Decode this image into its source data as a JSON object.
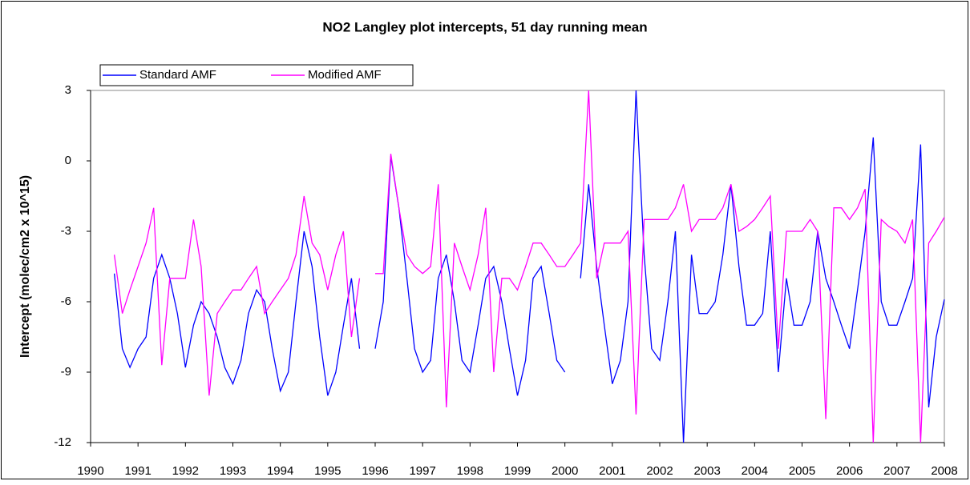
{
  "chart_data": {
    "type": "line",
    "title": "NO2 Langley plot intercepts, 51 day running mean",
    "y_label": "Intercept (molec/cm2 x 10^15)",
    "x": [
      1990.5,
      1990.67,
      1990.83,
      1991.0,
      1991.17,
      1991.33,
      1991.5,
      1991.67,
      1991.83,
      1992.0,
      1992.17,
      1992.33,
      1992.5,
      1992.67,
      1992.83,
      1993.0,
      1993.17,
      1993.33,
      1993.5,
      1993.67,
      1993.83,
      1994.0,
      1994.17,
      1994.33,
      1994.5,
      1994.67,
      1994.83,
      1995.0,
      1995.17,
      1995.33,
      1995.5,
      1995.67,
      1995.83,
      1996.0,
      1996.17,
      1996.33,
      1996.5,
      1996.67,
      1996.83,
      1997.0,
      1997.17,
      1997.33,
      1997.5,
      1997.67,
      1997.83,
      1998.0,
      1998.17,
      1998.33,
      1998.5,
      1998.67,
      1998.83,
      1999.0,
      1999.17,
      1999.33,
      1999.5,
      1999.67,
      1999.83,
      2000.0,
      2000.17,
      2000.33,
      2000.5,
      2000.67,
      2000.83,
      2001.0,
      2001.17,
      2001.33,
      2001.5,
      2001.67,
      2001.83,
      2002.0,
      2002.17,
      2002.33,
      2002.5,
      2002.67,
      2002.83,
      2003.0,
      2003.17,
      2003.33,
      2003.5,
      2003.67,
      2003.83,
      2004.0,
      2004.17,
      2004.33,
      2004.5,
      2004.67,
      2004.83,
      2005.0,
      2005.17,
      2005.33,
      2005.5,
      2005.67,
      2005.83,
      2006.0,
      2006.17,
      2006.33,
      2006.5,
      2006.67,
      2006.83,
      2007.0,
      2007.17,
      2007.33,
      2007.5,
      2007.67,
      2007.83,
      2008.0
    ],
    "series": [
      {
        "name": "Standard AMF",
        "color": "#0000ff",
        "values": [
          -4.8,
          -8.0,
          -8.8,
          -8.0,
          -7.5,
          -5.0,
          -4.0,
          -5.0,
          -6.5,
          -8.8,
          -7.0,
          -6.0,
          -6.5,
          -7.5,
          -8.8,
          -9.5,
          -8.5,
          -6.5,
          -5.5,
          -6.0,
          -8.0,
          -9.8,
          -9.0,
          -6.0,
          -3.0,
          -4.5,
          -7.5,
          -10.0,
          -9.0,
          -7.0,
          -5.0,
          -8.0,
          null,
          -8.0,
          -6.0,
          0.2,
          -2.0,
          -5.0,
          -8.0,
          -9.0,
          -8.5,
          -5.0,
          -4.0,
          -6.0,
          -8.5,
          -9.0,
          -7.0,
          -5.0,
          -4.5,
          -6.0,
          -8.0,
          -10.0,
          -8.5,
          -5.0,
          -4.5,
          -6.5,
          -8.5,
          -9.0,
          null,
          -5.0,
          -1.0,
          -4.5,
          -7.0,
          -9.5,
          -8.5,
          -6.0,
          3.0,
          -4.0,
          -8.0,
          -8.5,
          -6.0,
          -3.0,
          -12.0,
          -4.0,
          -6.5,
          -6.5,
          -6.0,
          -4.0,
          -1.0,
          -4.5,
          -7.0,
          -7.0,
          -6.5,
          -3.0,
          -9.0,
          -5.0,
          -7.0,
          -7.0,
          -6.0,
          -3.0,
          -5.0,
          -6.0,
          -7.0,
          -8.0,
          -5.5,
          -3.0,
          1.0,
          -6.0,
          -7.0,
          -7.0,
          -6.0,
          -5.0,
          0.7,
          -10.5,
          -7.5,
          -5.9
        ]
      },
      {
        "name": "Modified AMF",
        "color": "#ff00ff",
        "values": [
          -4.0,
          -6.5,
          -5.5,
          -4.5,
          -3.5,
          -2.0,
          -8.7,
          -5.0,
          -5.0,
          -5.0,
          -2.5,
          -4.5,
          -10.0,
          -6.5,
          -6.0,
          -5.5,
          -5.5,
          -5.0,
          -4.5,
          -6.5,
          -6.0,
          -5.5,
          -5.0,
          -4.0,
          -1.5,
          -3.5,
          -4.0,
          -5.5,
          -4.0,
          -3.0,
          -7.5,
          -5.0,
          null,
          -4.8,
          -4.8,
          0.3,
          -2.0,
          -4.0,
          -4.5,
          -4.8,
          -4.5,
          -1.0,
          -10.5,
          -3.5,
          -4.5,
          -5.5,
          -4.0,
          -2.0,
          -9.0,
          -5.0,
          -5.0,
          -5.5,
          -4.5,
          -3.5,
          -3.5,
          -4.0,
          -4.5,
          -4.5,
          -4.0,
          -3.5,
          3.0,
          -5.0,
          -3.5,
          -3.5,
          -3.5,
          -3.0,
          -10.8,
          -2.5,
          -2.5,
          -2.5,
          -2.5,
          -2.0,
          -1.0,
          -3.0,
          -2.5,
          -2.5,
          -2.5,
          -2.0,
          -1.0,
          -3.0,
          -2.8,
          -2.5,
          -2.0,
          -1.5,
          -8.0,
          -3.0,
          -3.0,
          -3.0,
          -2.5,
          -3.0,
          -11.0,
          -2.0,
          -2.0,
          -2.5,
          -2.0,
          -1.2,
          -12.0,
          -2.5,
          -2.8,
          -3.0,
          -3.5,
          -2.5,
          -12.0,
          -3.5,
          -3.0,
          -2.4
        ]
      }
    ],
    "xlim": [
      1990,
      2008
    ],
    "xticks": [
      1990,
      1991,
      1992,
      1993,
      1994,
      1995,
      1996,
      1997,
      1998,
      1999,
      2000,
      2001,
      2002,
      2003,
      2004,
      2005,
      2006,
      2007,
      2008
    ],
    "ylim": [
      -12,
      3
    ],
    "yticks": [
      -12,
      -9,
      -6,
      -3,
      0,
      3
    ],
    "grid": false,
    "legend": "top-left"
  }
}
